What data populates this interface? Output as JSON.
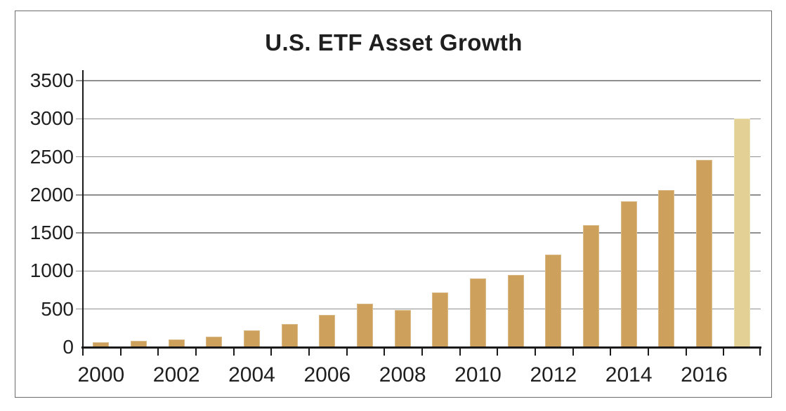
{
  "chart": {
    "title": "U.S. ETF Asset Growth"
  },
  "chart_data": {
    "type": "bar",
    "title": "U.S. ETF Asset Growth",
    "categories": [
      "2000",
      "2001",
      "2002",
      "2003",
      "2004",
      "2005",
      "2006",
      "2007",
      "2008",
      "2009",
      "2010",
      "2011",
      "2012",
      "2013",
      "2014",
      "2015",
      "2016",
      "2017"
    ],
    "values": [
      65,
      85,
      100,
      140,
      220,
      300,
      420,
      575,
      490,
      715,
      900,
      945,
      1220,
      1600,
      1915,
      2060,
      2455,
      3000
    ],
    "highlighted_category": "2017",
    "x_axis_labels": [
      "2000",
      "2002",
      "2004",
      "2006",
      "2008",
      "2010",
      "2012",
      "2014",
      "2016"
    ],
    "y_axis_ticks": [
      0,
      500,
      1000,
      1500,
      2000,
      2500,
      3000,
      3500
    ],
    "ylim": [
      0,
      3500
    ],
    "xlabel": "",
    "ylabel": "",
    "grid": "horizontal",
    "legend": "none",
    "colors": {
      "bar": "#CDA05C",
      "highlighted_bar": "#E2D094",
      "gridline": "#8F8F8F",
      "axis": "#1A1A1A",
      "text": "#1F1F1F",
      "frame_border": "#6B6B6B",
      "background": "#FFFFFF"
    }
  }
}
